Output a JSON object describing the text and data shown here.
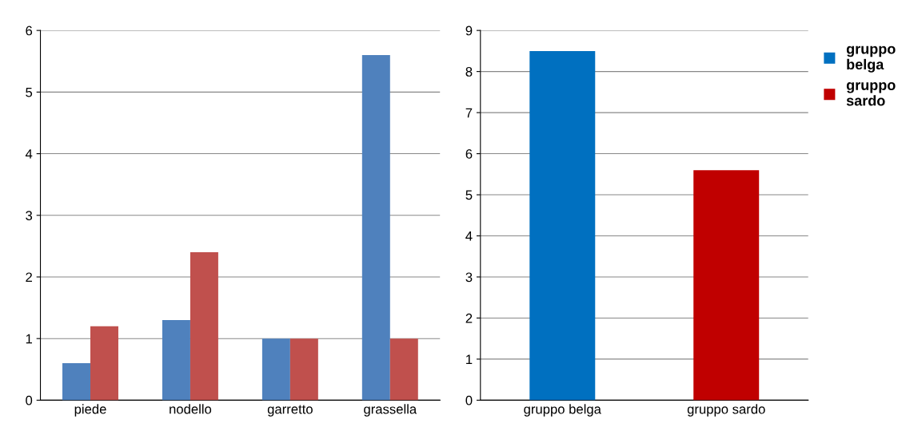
{
  "chart_data": [
    {
      "type": "bar",
      "categories": [
        "piede",
        "nodello",
        "garretto",
        "grassella"
      ],
      "series": [
        {
          "color": "#4f81bd",
          "values": [
            0.6,
            1.3,
            1,
            5.6
          ]
        },
        {
          "color": "#c0504d",
          "values": [
            1.2,
            2.4,
            1,
            1
          ]
        }
      ],
      "ylim": [
        0,
        6
      ],
      "yticks": [
        0,
        1,
        2,
        3,
        4,
        5,
        6
      ],
      "grid": "y"
    },
    {
      "type": "bar",
      "categories": [
        "gruppo belga",
        "gruppo sardo"
      ],
      "stacked": true,
      "series": [
        {
          "name": "gruppo belga",
          "color": "#0070c0",
          "values": [
            8.5,
            null
          ]
        },
        {
          "name": "gruppo sardo",
          "color": "#c00000",
          "values": [
            null,
            5.6
          ]
        }
      ],
      "ylim": [
        0,
        9
      ],
      "yticks": [
        0,
        1,
        2,
        3,
        4,
        5,
        6,
        7,
        8,
        9
      ],
      "grid": "y",
      "legend": "right"
    }
  ]
}
